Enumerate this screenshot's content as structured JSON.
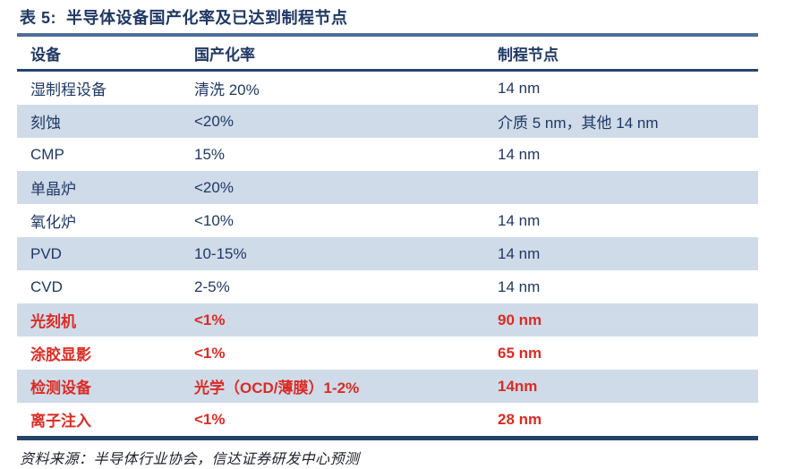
{
  "table": {
    "title": "表 5:  半导体设备国产化率及已达到制程节点",
    "columns": [
      "设备",
      "国产化率",
      "制程节点"
    ],
    "rows": [
      {
        "device": "湿制程设备",
        "rate": "清洗 20%",
        "node": "14 nm",
        "underlined": true,
        "shaded": false,
        "red": false
      },
      {
        "device": "刻蚀",
        "rate": "<20%",
        "node": "介质 5 nm，其他 14 nm",
        "underlined": true,
        "shaded": true,
        "red": false
      },
      {
        "device": "CMP",
        "rate": "15%",
        "node": "14 nm",
        "underlined": false,
        "shaded": false,
        "red": false
      },
      {
        "device": "单晶炉",
        "rate": "<20%",
        "node": "",
        "underlined": false,
        "shaded": true,
        "red": false
      },
      {
        "device": "氧化炉",
        "rate": "<10%",
        "node": "14 nm",
        "underlined": false,
        "shaded": false,
        "red": false
      },
      {
        "device": "PVD",
        "rate": "10-15%",
        "node": "14 nm",
        "underlined": false,
        "shaded": true,
        "red": false
      },
      {
        "device": "CVD",
        "rate": "2-5%",
        "node": "14 nm",
        "underlined": false,
        "shaded": false,
        "red": false
      },
      {
        "device": "光刻机",
        "rate": "<1%",
        "node": "90 nm",
        "underlined": false,
        "shaded": true,
        "red": true
      },
      {
        "device": "涂胶显影",
        "rate": "<1%",
        "node": "65 nm",
        "underlined": false,
        "shaded": false,
        "red": true
      },
      {
        "device": "检测设备",
        "rate": "光学（OCD/薄膜）1-2%",
        "node": "14nm",
        "underlined": false,
        "shaded": true,
        "red": true
      },
      {
        "device": "离子注入",
        "rate": "<1%",
        "node": "28 nm",
        "underlined": false,
        "shaded": false,
        "red": true
      }
    ],
    "source": "资料来源：半导体行业协会，信达证券研发中心预测"
  },
  "colors": {
    "navy_text": "#1F3864",
    "header_rule": "#24456B",
    "title_rule": "#4E6E9A",
    "row_shade": "#CFDBE9",
    "red_text": "#DC2B23"
  }
}
